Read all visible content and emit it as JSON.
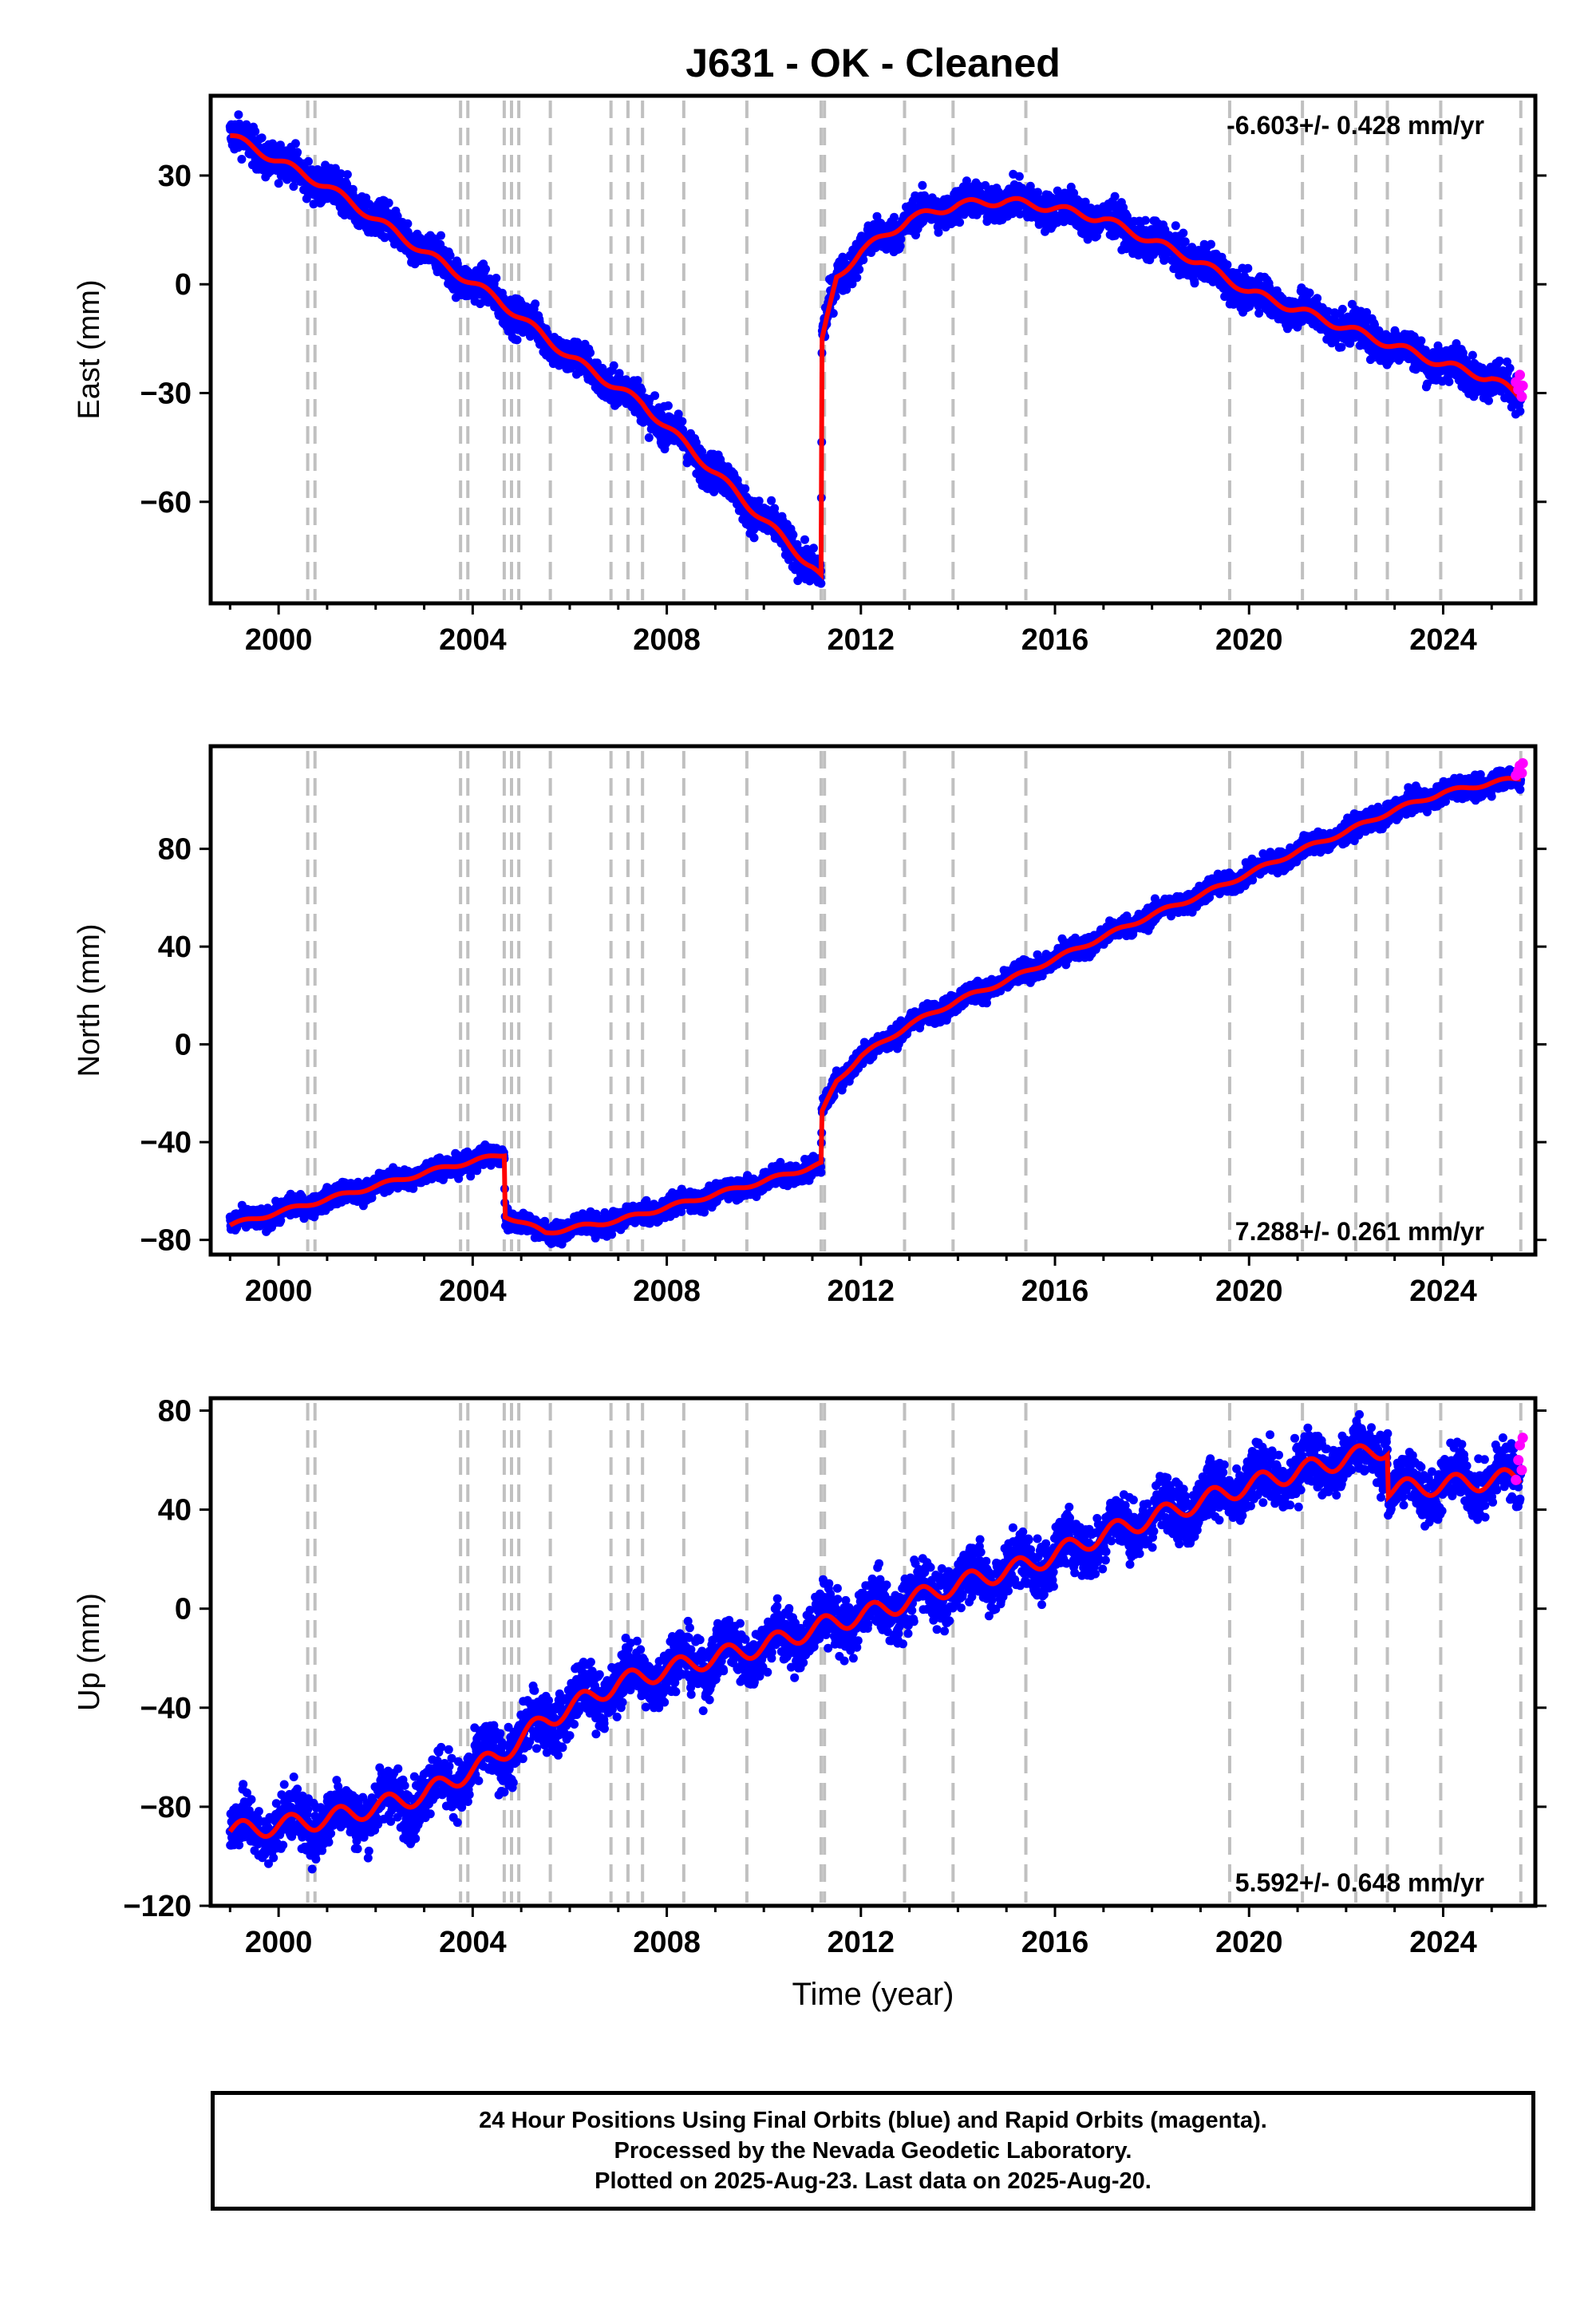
{
  "title": "J631  - OK - Cleaned",
  "colors": {
    "final_points": "#0000ff",
    "rapid_points": "#ff00ff",
    "model_line": "#ff0000",
    "event_lines": "#c0c0c0"
  },
  "footer": {
    "line1": "24 Hour Positions Using Final Orbits (blue) and Rapid Orbits (magenta).",
    "line2": "Processed by the Nevada Geodetic Laboratory.",
    "line3": "Plotted on 2025-Aug-23. Last data on 2025-Aug-20."
  },
  "chart_data": [
    {
      "type": "scatter",
      "panel": "east",
      "ylabel": "East (mm)",
      "xlabel": "",
      "xlim": [
        1998.6,
        2025.9
      ],
      "ylim": [
        -88,
        52
      ],
      "x_ticks": [
        2000,
        2004,
        2008,
        2012,
        2016,
        2020,
        2024
      ],
      "y_ticks": [
        -60,
        -30,
        0,
        30
      ],
      "y_tick_labels": [
        "−60",
        "−30",
        "0",
        "30"
      ],
      "rate_label": "-6.603+/- 0.428 mm/yr",
      "rate_label_position": "top-right",
      "event_lines": [
        2000.6,
        2000.75,
        2003.75,
        2003.9,
        2004.65,
        2004.8,
        2004.95,
        2005.6,
        2006.85,
        2007.2,
        2007.5,
        2008.35,
        2009.65,
        2011.18,
        2011.25,
        2012.9,
        2013.9,
        2015.4,
        2019.6,
        2021.1,
        2022.2,
        2022.85,
        2023.95,
        2025.6
      ],
      "model": [
        [
          1999.0,
          41
        ],
        [
          2001.0,
          27
        ],
        [
          2003.0,
          9
        ],
        [
          2004.5,
          -4
        ],
        [
          2006.0,
          -20
        ],
        [
          2007.5,
          -33
        ],
        [
          2009.0,
          -52
        ],
        [
          2011.0,
          -78
        ],
        [
          2011.18,
          -81
        ],
        [
          2011.2,
          -16
        ],
        [
          2011.5,
          2
        ],
        [
          2012.0,
          9
        ],
        [
          2013.0,
          18
        ],
        [
          2014.0,
          22
        ],
        [
          2015.0,
          23
        ],
        [
          2016.0,
          21
        ],
        [
          2017.0,
          18
        ],
        [
          2018.0,
          12
        ],
        [
          2019.0,
          6
        ],
        [
          2020.0,
          -2
        ],
        [
          2021.0,
          -7
        ],
        [
          2022.0,
          -12
        ],
        [
          2023.0,
          -17
        ],
        [
          2024.0,
          -22
        ],
        [
          2025.0,
          -26
        ],
        [
          2025.6,
          -31
        ]
      ],
      "seasonal_amplitude": 1.6,
      "scatter_noise": 3.5,
      "rapid_points": [
        [
          2025.5,
          -27
        ],
        [
          2025.55,
          -29
        ],
        [
          2025.58,
          -25
        ],
        [
          2025.62,
          -31
        ],
        [
          2025.64,
          -28
        ]
      ]
    },
    {
      "type": "scatter",
      "panel": "north",
      "ylabel": "North (mm)",
      "xlabel": "",
      "xlim": [
        1998.6,
        2025.9
      ],
      "ylim": [
        -86,
        122
      ],
      "x_ticks": [
        2000,
        2004,
        2008,
        2012,
        2016,
        2020,
        2024
      ],
      "y_ticks": [
        -80,
        -40,
        0,
        40,
        80
      ],
      "y_tick_labels": [
        "−80",
        "−40",
        "0",
        "40",
        "80"
      ],
      "rate_label": "7.288+/- 0.261 mm/yr",
      "rate_label_position": "bottom-right",
      "event_lines": [
        2000.6,
        2000.75,
        2003.75,
        2003.9,
        2004.65,
        2004.8,
        2004.95,
        2005.6,
        2006.85,
        2007.2,
        2007.5,
        2008.35,
        2009.65,
        2011.18,
        2011.25,
        2012.9,
        2013.9,
        2015.4,
        2019.6,
        2021.1,
        2022.2,
        2022.85,
        2023.95,
        2025.6
      ],
      "model": [
        [
          1999.0,
          -74
        ],
        [
          2000.5,
          -66
        ],
        [
          2002.0,
          -58
        ],
        [
          2003.5,
          -50
        ],
        [
          2004.65,
          -45
        ],
        [
          2004.67,
          -70
        ],
        [
          2005.5,
          -77
        ],
        [
          2007.0,
          -72
        ],
        [
          2008.5,
          -64
        ],
        [
          2010.0,
          -56
        ],
        [
          2011.18,
          -49
        ],
        [
          2011.2,
          -28
        ],
        [
          2011.5,
          -15
        ],
        [
          2012.0,
          -5
        ],
        [
          2013.0,
          8
        ],
        [
          2014.0,
          18
        ],
        [
          2015.0,
          26
        ],
        [
          2016.0,
          35
        ],
        [
          2017.0,
          44
        ],
        [
          2018.0,
          53
        ],
        [
          2019.0,
          61
        ],
        [
          2020.0,
          70
        ],
        [
          2021.0,
          79
        ],
        [
          2022.0,
          87
        ],
        [
          2023.0,
          96
        ],
        [
          2024.0,
          103
        ],
        [
          2025.0,
          107
        ],
        [
          2025.6,
          109
        ]
      ],
      "seasonal_amplitude": 1.2,
      "scatter_noise": 3.0,
      "rapid_points": [
        [
          2025.5,
          110
        ],
        [
          2025.55,
          112
        ],
        [
          2025.58,
          114
        ],
        [
          2025.62,
          111
        ],
        [
          2025.64,
          115
        ]
      ]
    },
    {
      "type": "scatter",
      "panel": "up",
      "ylabel": "Up (mm)",
      "xlabel": "Time (year)",
      "xlim": [
        1998.6,
        2025.9
      ],
      "ylim": [
        -120,
        85
      ],
      "x_ticks": [
        2000,
        2004,
        2008,
        2012,
        2016,
        2020,
        2024
      ],
      "y_ticks": [
        -120,
        -80,
        -40,
        0,
        40,
        80
      ],
      "y_tick_labels": [
        "−120",
        "−80",
        "−40",
        "0",
        "40",
        "80"
      ],
      "rate_label": "5.592+/- 0.648 mm/yr",
      "rate_label_position": "bottom-right",
      "event_lines": [
        2000.6,
        2000.75,
        2003.75,
        2003.9,
        2004.65,
        2004.8,
        2004.95,
        2005.6,
        2006.85,
        2007.2,
        2007.5,
        2008.35,
        2009.65,
        2011.18,
        2011.25,
        2012.9,
        2013.9,
        2015.4,
        2019.6,
        2021.1,
        2022.2,
        2022.85,
        2023.95,
        2025.6
      ],
      "model": [
        [
          1999.0,
          -90
        ],
        [
          2001.0,
          -85
        ],
        [
          2003.0,
          -75
        ],
        [
          2004.5,
          -60
        ],
        [
          2005.5,
          -45
        ],
        [
          2007.0,
          -30
        ],
        [
          2008.5,
          -22
        ],
        [
          2010.0,
          -15
        ],
        [
          2011.2,
          -7
        ],
        [
          2012.5,
          0
        ],
        [
          2014.0,
          10
        ],
        [
          2015.5,
          18
        ],
        [
          2017.0,
          30
        ],
        [
          2018.5,
          40
        ],
        [
          2020.0,
          50
        ],
        [
          2021.5,
          58
        ],
        [
          2022.85,
          65
        ],
        [
          2022.87,
          48
        ],
        [
          2024.0,
          50
        ],
        [
          2025.6,
          53
        ]
      ],
      "seasonal_amplitude": 5.5,
      "scatter_noise": 8.0,
      "rapid_points": [
        [
          2025.5,
          52
        ],
        [
          2025.55,
          60
        ],
        [
          2025.58,
          66
        ],
        [
          2025.62,
          56
        ],
        [
          2025.64,
          69
        ]
      ]
    }
  ]
}
